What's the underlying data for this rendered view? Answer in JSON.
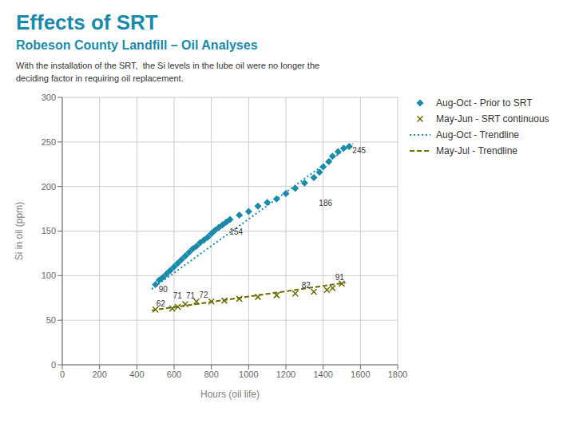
{
  "chart_data": {
    "type": "scatter",
    "title": "Effects of SRT",
    "subtitle": "Robeson County Landfill – Oil Analyses",
    "title_color": "#1a8aab",
    "description": "With the installation of the SRT,  the Si levels in the lube oil were no longer the\ndeciding factor in requiring oil replacement.",
    "xlabel": "Hours (oil life)",
    "ylabel": "Si in oil (ppm)",
    "xlim": [
      0,
      1800
    ],
    "ylim": [
      0,
      300
    ],
    "xticks": [
      0,
      200,
      400,
      600,
      800,
      1000,
      1200,
      1400,
      1600,
      1800
    ],
    "yticks": [
      0,
      50,
      100,
      150,
      200,
      250,
      300
    ],
    "grid": true,
    "legend": "right",
    "series": [
      {
        "name": "Aug-Oct - Prior to SRT",
        "type": "scatter",
        "color": "#1a8aab",
        "marker": "diamond",
        "x": [
          500,
          520,
          540,
          560,
          580,
          600,
          620,
          640,
          660,
          680,
          700,
          720,
          740,
          760,
          780,
          800,
          820,
          840,
          860,
          880,
          900,
          950,
          1000,
          1050,
          1100,
          1150,
          1200,
          1250,
          1300,
          1350,
          1380,
          1400,
          1430,
          1450,
          1480,
          1510,
          1540
        ],
        "values": [
          90,
          95,
          98,
          102,
          106,
          110,
          114,
          118,
          122,
          126,
          130,
          133,
          137,
          140,
          143,
          147,
          151,
          154,
          157,
          160,
          163,
          168,
          172,
          178,
          182,
          186,
          192,
          198,
          204,
          210,
          216,
          222,
          228,
          234,
          239,
          243,
          245
        ],
        "annotations": [
          {
            "x": 500,
            "y": 90,
            "text": "90"
          },
          {
            "x": 880,
            "y": 154,
            "text": "154"
          },
          {
            "x": 1360,
            "y": 186,
            "text": "186"
          },
          {
            "x": 1540,
            "y": 245,
            "text": "245"
          }
        ]
      },
      {
        "name": "May-Jun - SRT continuous",
        "type": "scatter",
        "color": "#6b6b00",
        "marker": "x",
        "x": [
          500,
          590,
          620,
          660,
          720,
          800,
          870,
          950,
          1050,
          1150,
          1250,
          1350,
          1420,
          1450,
          1500
        ],
        "values": [
          62,
          63,
          65,
          68,
          71,
          71,
          72,
          74,
          76,
          78,
          80,
          82,
          84,
          86,
          91
        ],
        "annotations": [
          {
            "x": 500,
            "y": 62,
            "text": "62"
          },
          {
            "x": 590,
            "y": 71,
            "text": "71"
          },
          {
            "x": 660,
            "y": 71,
            "text": "71"
          },
          {
            "x": 730,
            "y": 72,
            "text": "72"
          },
          {
            "x": 1280,
            "y": 82,
            "text": "82"
          },
          {
            "x": 1460,
            "y": 91,
            "text": "91"
          }
        ]
      },
      {
        "name": "Aug-Oct - Trendline",
        "type": "line",
        "color": "#1a8aab",
        "line_style": "dotted",
        "x": [
          480,
          1560
        ],
        "values": [
          85,
          248
        ]
      },
      {
        "name": "May-Jul - Trendline",
        "type": "line",
        "color": "#6b6b00",
        "line_style": "dashed",
        "x": [
          480,
          1520
        ],
        "values": [
          61,
          92
        ]
      }
    ]
  }
}
